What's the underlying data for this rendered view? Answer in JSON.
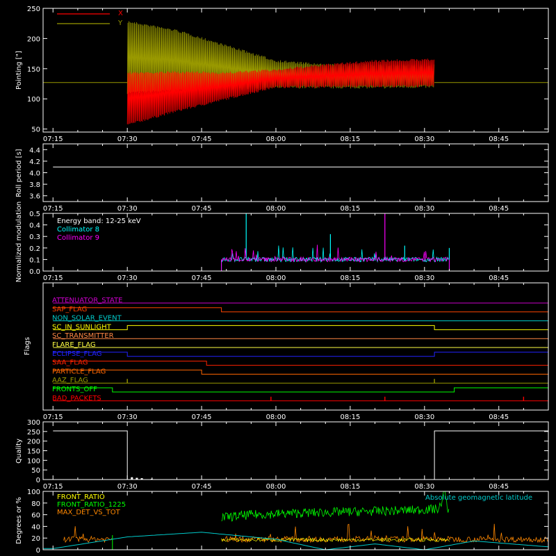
{
  "time_labels": [
    "07:15",
    "07:30",
    "07:45",
    "08:00",
    "08:15",
    "08:30",
    "08:45"
  ],
  "chart_data": [
    {
      "type": "line",
      "ylabel": "Pointing [\"]",
      "ylim": [
        45,
        250
      ],
      "yticks": [
        50,
        100,
        150,
        200,
        250
      ],
      "legend_placement": "top-left",
      "series": [
        {
          "name": "X",
          "color": "#ff0000",
          "envelope": {
            "x": [
              "07:30",
              "07:40",
              "07:50",
              "08:00",
              "08:10",
              "08:20",
              "08:32"
            ],
            "low": [
              55,
              78,
              98,
              118,
              118,
              119,
              119
            ],
            "high": [
              145,
              146,
              145,
              150,
              158,
              165,
              167
            ]
          },
          "flat_value": 127
        },
        {
          "name": "Y",
          "color": "#999900",
          "envelope": {
            "x": [
              "07:30",
              "07:40",
              "07:50",
              "08:00",
              "08:10",
              "08:20",
              "08:32"
            ],
            "low": [
              108,
              112,
              114,
              117,
              117,
              117,
              118
            ],
            "high": [
              230,
              215,
              190,
              165,
              158,
              158,
              157
            ]
          },
          "flat_value": 127
        }
      ]
    },
    {
      "type": "line",
      "ylabel": "Roll period [s]",
      "ylim": [
        3.5,
        4.5
      ],
      "yticks": [
        "3.6",
        "3.8",
        "4.0",
        "4.2",
        "4.4"
      ],
      "series": [
        {
          "name": "",
          "color": "#ffffff",
          "x": [
            "07:15",
            "08:55"
          ],
          "y": [
            4.1,
            4.1
          ]
        }
      ]
    },
    {
      "type": "line",
      "ylabel": "Normalized modulation",
      "ylim": [
        0,
        0.5
      ],
      "yticks": [
        "0.0",
        "0.1",
        "0.2",
        "0.3",
        "0.4",
        "0.5"
      ],
      "legend_title": "Energy band: 12-25 keV",
      "series": [
        {
          "name": "Collimator 8",
          "color": "#00ffff",
          "active_range": [
            "07:49",
            "08:35"
          ],
          "baseline": 0.1,
          "spikes": [
            {
              "x": "07:54",
              "y": 0.5
            },
            {
              "x": "08:11",
              "y": 0.32
            },
            {
              "x": "08:26",
              "y": 0.22
            },
            {
              "x": "08:35",
              "y": 0.2
            }
          ]
        },
        {
          "name": "Collimator 9",
          "color": "#ff00ff",
          "active_range": [
            "07:49",
            "08:35"
          ],
          "baseline": 0.1,
          "spikes": [
            {
              "x": "08:22",
              "y": 0.5
            }
          ]
        }
      ]
    },
    {
      "type": "line",
      "ylabel": "Flags",
      "flags": [
        {
          "name": "ATTENUATOR_STATE",
          "color": "#cc00cc",
          "segments": [
            {
              "x": [
                "07:15",
                "08:55"
              ],
              "level": 0
            }
          ]
        },
        {
          "name": "SAP_FLAG",
          "color": "#ff4400",
          "segments": [
            {
              "x": [
                "07:15",
                "07:49"
              ],
              "level": 1
            },
            {
              "x": [
                "07:49",
                "08:55"
              ],
              "level": 0
            }
          ]
        },
        {
          "name": "NON_SOLAR_EVENT",
          "color": "#00cccc",
          "segments": [
            {
              "x": [
                "07:15",
                "08:55"
              ],
              "level": 0
            }
          ]
        },
        {
          "name": "SC_IN_SUNLIGHT",
          "color": "#ffff00",
          "segments": [
            {
              "x": [
                "07:15",
                "07:30"
              ],
              "level": 0
            },
            {
              "x": [
                "07:30",
                "08:32"
              ],
              "level": 1
            },
            {
              "x": [
                "08:32",
                "08:55"
              ],
              "level": 0
            }
          ]
        },
        {
          "name": "SC_TRANSMITTER",
          "color": "#ff8844",
          "segments": [
            {
              "x": [
                "07:15",
                "08:55"
              ],
              "level": 0
            }
          ]
        },
        {
          "name": "FLARE_FLAG",
          "color": "#ffff44",
          "segments": [
            {
              "x": [
                "07:15",
                "08:55"
              ],
              "level": 0
            }
          ]
        },
        {
          "name": "ECLIPSE_FLAG",
          "color": "#2222ff",
          "segments": [
            {
              "x": [
                "07:15",
                "07:30"
              ],
              "level": 1
            },
            {
              "x": [
                "07:30",
                "08:32"
              ],
              "level": 0
            },
            {
              "x": [
                "08:32",
                "08:55"
              ],
              "level": 1
            }
          ]
        },
        {
          "name": "SAA_FLAG",
          "color": "#ff2200",
          "segments": [
            {
              "x": [
                "07:15",
                "07:46"
              ],
              "level": 1
            },
            {
              "x": [
                "07:46",
                "08:55"
              ],
              "level": 0
            }
          ]
        },
        {
          "name": "PARTICLE_FLAG",
          "color": "#ff6600",
          "segments": [
            {
              "x": [
                "07:15",
                "07:45"
              ],
              "level": 1
            },
            {
              "x": [
                "07:45",
                "08:55"
              ],
              "level": 0
            }
          ]
        },
        {
          "name": "AAZ_FLAG",
          "color": "#999900",
          "segments": [
            {
              "x": [
                "07:15",
                "08:55"
              ],
              "level": 0
            }
          ],
          "pulses": [
            "07:30",
            "08:32"
          ]
        },
        {
          "name": "FRONTS_OFF",
          "color": "#00ff00",
          "segments": [
            {
              "x": [
                "07:15",
                "07:27"
              ],
              "level": 1
            },
            {
              "x": [
                "07:27",
                "08:36"
              ],
              "level": 0
            },
            {
              "x": [
                "08:36",
                "08:55"
              ],
              "level": 1
            }
          ]
        },
        {
          "name": "BAD_PACKETS",
          "color": "#ff0000",
          "segments": [
            {
              "x": [
                "07:15",
                "08:55"
              ],
              "level": 0
            }
          ],
          "pulses": [
            "07:59",
            "08:22",
            "08:50"
          ]
        }
      ]
    },
    {
      "type": "line",
      "ylabel": "Quality",
      "ylim": [
        0,
        300
      ],
      "yticks": [
        0,
        50,
        100,
        150,
        200,
        250,
        300
      ],
      "series": [
        {
          "name": "",
          "color": "#ffffff",
          "x": [
            "07:15",
            "07:30",
            "07:30",
            "08:32",
            "08:32",
            "08:55"
          ],
          "y": [
            253,
            253,
            0,
            0,
            253,
            253
          ]
        }
      ],
      "blips": [
        {
          "x": "07:31",
          "y": 12
        },
        {
          "x": "07:32",
          "y": 9
        },
        {
          "x": "07:33",
          "y": 7
        },
        {
          "x": "07:35",
          "y": 4
        }
      ]
    },
    {
      "type": "line",
      "ylabel": "Degrees or %",
      "ylim": [
        0,
        100
      ],
      "yticks": [
        0,
        20,
        40,
        60,
        80,
        100
      ],
      "legend_placement": "top-left",
      "series": [
        {
          "name": "FRONT_RATIO",
          "color": "#ffff00"
        },
        {
          "name": "FRONT_RATIO_1225",
          "color": "#00ff00",
          "x": [
            "07:49",
            "07:55",
            "08:05",
            "08:15",
            "08:25",
            "08:33",
            "08:34",
            "08:35"
          ],
          "y": [
            55,
            60,
            63,
            65,
            67,
            70,
            100,
            60
          ]
        },
        {
          "name": "MAX_DET_VS_TOT",
          "color": "#ff8800",
          "baseline": 18
        },
        {
          "name": "Absolute geomagnetic latitude",
          "color": "#00cccc",
          "x": [
            "07:15",
            "07:30",
            "07:45",
            "08:00",
            "08:10",
            "08:20",
            "08:30",
            "08:40",
            "08:55"
          ],
          "y": [
            2,
            22,
            30,
            18,
            0,
            10,
            0,
            15,
            5
          ]
        }
      ]
    }
  ]
}
